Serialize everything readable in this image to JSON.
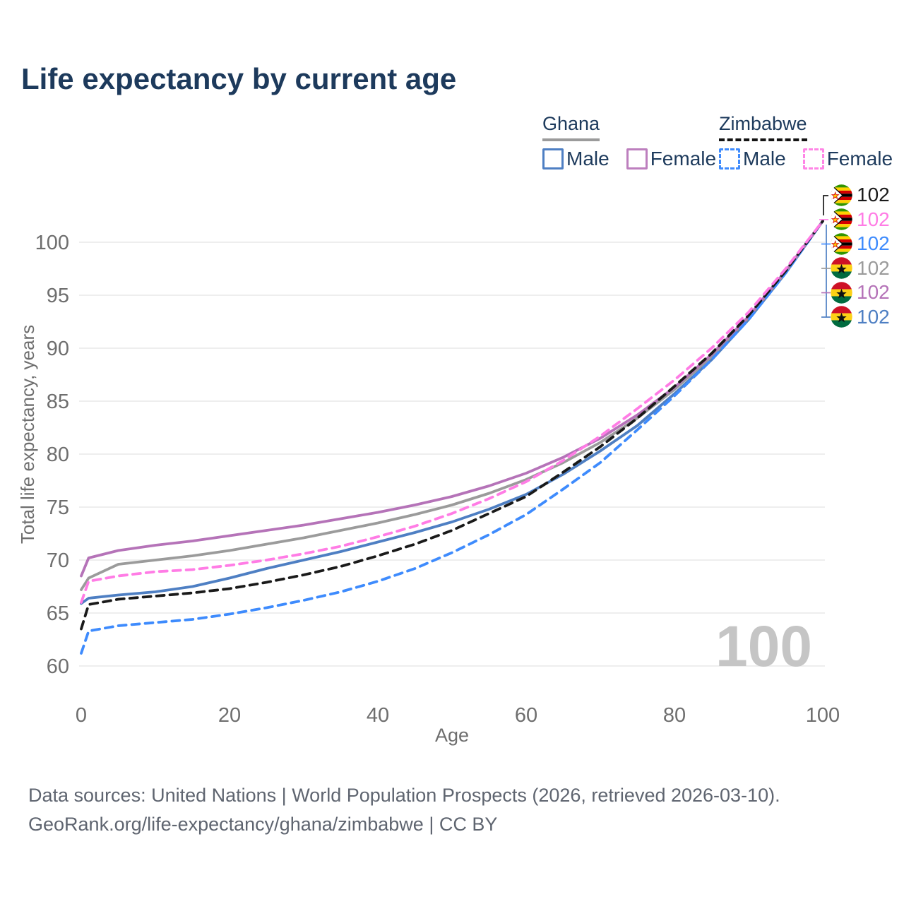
{
  "title": "Life expectancy by current age",
  "legend": {
    "ghana": {
      "label": "Ghana",
      "male_label": "Male",
      "female_label": "Female"
    },
    "zimbabwe": {
      "label": "Zimbabwe",
      "male_label": "Male",
      "female_label": "Female"
    }
  },
  "watermark": "100",
  "footer": {
    "line1": "Data sources: United Nations | World Population Prospects (2026, retrieved 2026-03-10).",
    "line2": "GeoRank.org/life-expectancy/ghana/zimbabwe | CC BY"
  },
  "colors": {
    "title_navy": "#1d3a5c",
    "ghana_male_blue": "#4e7fc3",
    "ghana_female_purple": "#b573b8",
    "ghana_both_gray": "#9b9b9b",
    "zimbabwe_male_blue": "#3e8bfd",
    "zimbabwe_female_pink": "#ff7ce5",
    "zimbabwe_both_black": "#1a1a1a",
    "axis_text": "#6e6e6e",
    "gridline": "#e9e9e9",
    "watermark_gray": "#c5c5c5"
  },
  "end_labels": [
    {
      "country": "Zimbabwe",
      "series": "Both sexes",
      "flag": "zimbabwe",
      "value": "102",
      "color": "#1a1a1a"
    },
    {
      "country": "Zimbabwe",
      "series": "Female",
      "flag": "zimbabwe",
      "value": "102",
      "color": "#ff7ce5"
    },
    {
      "country": "Zimbabwe",
      "series": "Male",
      "flag": "zimbabwe",
      "value": "102",
      "color": "#3e8bfd"
    },
    {
      "country": "Ghana",
      "series": "Both sexes",
      "flag": "ghana",
      "value": "102",
      "color": "#9b9b9b"
    },
    {
      "country": "Ghana",
      "series": "Female",
      "flag": "ghana",
      "value": "102",
      "color": "#b573b8"
    },
    {
      "country": "Ghana",
      "series": "Male",
      "flag": "ghana",
      "value": "102",
      "color": "#4e7fc3"
    }
  ],
  "chart_data": {
    "type": "line",
    "title": "Life expectancy by current age",
    "xlabel": "Age",
    "ylabel": "Total life expectancy, years",
    "x_ticks": [
      0,
      20,
      40,
      60,
      80,
      100
    ],
    "y_ticks": [
      60,
      65,
      70,
      75,
      80,
      85,
      90,
      95,
      100
    ],
    "xlim": [
      0,
      100
    ],
    "ylim": [
      58.5,
      104
    ],
    "grid": "horizontal-only",
    "legend_position": "top-right",
    "ages": [
      0,
      1,
      5,
      10,
      15,
      20,
      25,
      30,
      35,
      40,
      45,
      50,
      55,
      60,
      65,
      70,
      75,
      80,
      85,
      90,
      95,
      100
    ],
    "series": [
      {
        "id": "ghana-male",
        "name": "Ghana Male",
        "style": "solid",
        "color": "#4e7fc3",
        "values": [
          65.9,
          66.4,
          66.7,
          67.0,
          67.5,
          68.3,
          69.2,
          70.0,
          70.8,
          71.7,
          72.6,
          73.6,
          74.8,
          76.2,
          78.1,
          80.3,
          82.7,
          85.7,
          88.9,
          92.7,
          97.1,
          102
        ]
      },
      {
        "id": "ghana-both",
        "name": "Ghana Both sexes",
        "style": "solid",
        "color": "#9b9b9b",
        "values": [
          67.2,
          68.3,
          69.6,
          70.0,
          70.4,
          70.9,
          71.5,
          72.1,
          72.8,
          73.5,
          74.3,
          75.2,
          76.3,
          77.6,
          79.2,
          81.1,
          83.4,
          86.1,
          89.2,
          92.9,
          97.2,
          102
        ]
      },
      {
        "id": "ghana-female",
        "name": "Ghana Female",
        "style": "solid",
        "color": "#b573b8",
        "values": [
          68.5,
          70.2,
          70.9,
          71.4,
          71.8,
          72.3,
          72.8,
          73.3,
          73.9,
          74.5,
          75.2,
          76.0,
          77.0,
          78.2,
          79.7,
          81.5,
          83.7,
          86.3,
          89.4,
          93.0,
          97.3,
          102
        ]
      },
      {
        "id": "zimbabwe-male",
        "name": "Zimbabwe Male",
        "style": "dashed",
        "color": "#3e8bfd",
        "values": [
          61.2,
          63.3,
          63.8,
          64.1,
          64.4,
          64.9,
          65.5,
          66.2,
          67.0,
          68.0,
          69.2,
          70.7,
          72.4,
          74.3,
          76.7,
          79.2,
          82.3,
          85.5,
          88.9,
          92.7,
          97.1,
          102
        ]
      },
      {
        "id": "zimbabwe-both",
        "name": "Zimbabwe Both sexes",
        "style": "dashed",
        "color": "#1a1a1a",
        "values": [
          63.5,
          65.8,
          66.3,
          66.6,
          66.9,
          67.3,
          67.9,
          68.6,
          69.4,
          70.4,
          71.5,
          72.8,
          74.4,
          76.0,
          78.3,
          80.7,
          83.4,
          86.4,
          89.5,
          93.1,
          97.3,
          102
        ]
      },
      {
        "id": "zimbabwe-female",
        "name": "Zimbabwe Female",
        "style": "dashed",
        "color": "#ff7ce5",
        "values": [
          66.0,
          68.0,
          68.5,
          68.9,
          69.1,
          69.5,
          70.0,
          70.6,
          71.3,
          72.2,
          73.2,
          74.4,
          75.8,
          77.4,
          79.4,
          81.7,
          84.3,
          87.0,
          90.0,
          93.4,
          97.5,
          102
        ]
      }
    ]
  }
}
